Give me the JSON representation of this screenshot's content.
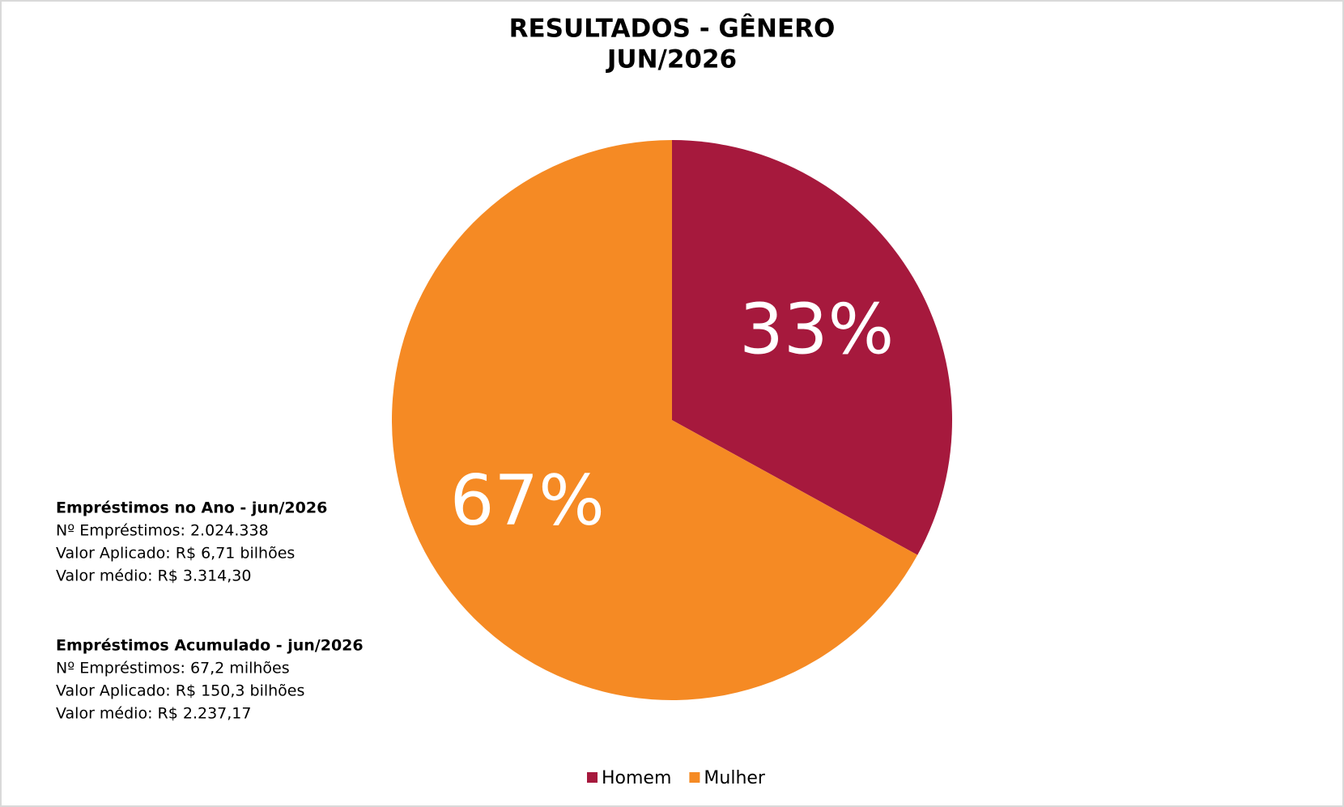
{
  "chart_data": {
    "type": "pie",
    "title": "RESULTADOS - GÊNERO",
    "subtitle": "JUN/2026",
    "categories": [
      "Homem",
      "Mulher"
    ],
    "values": [
      33,
      67
    ],
    "value_labels": [
      "33%",
      "67%"
    ],
    "colors": [
      "#a6193d",
      "#f58a24"
    ],
    "legend": "bottom",
    "annotations": [
      {
        "heading": "Empréstimos no Ano - jun/2026",
        "lines": [
          "Nº Empréstimos: 2.024.338",
          "Valor Aplicado: R$ 6,71 bilhões",
          "Valor médio: R$ 3.314,30"
        ]
      },
      {
        "heading": "Empréstimos Acumulado - jun/2026",
        "lines": [
          "Nº Empréstimos: 67,2 milhões",
          "Valor Aplicado: R$ 150,3 bilhões",
          "Valor médio: R$ 2.237,17"
        ]
      }
    ]
  }
}
